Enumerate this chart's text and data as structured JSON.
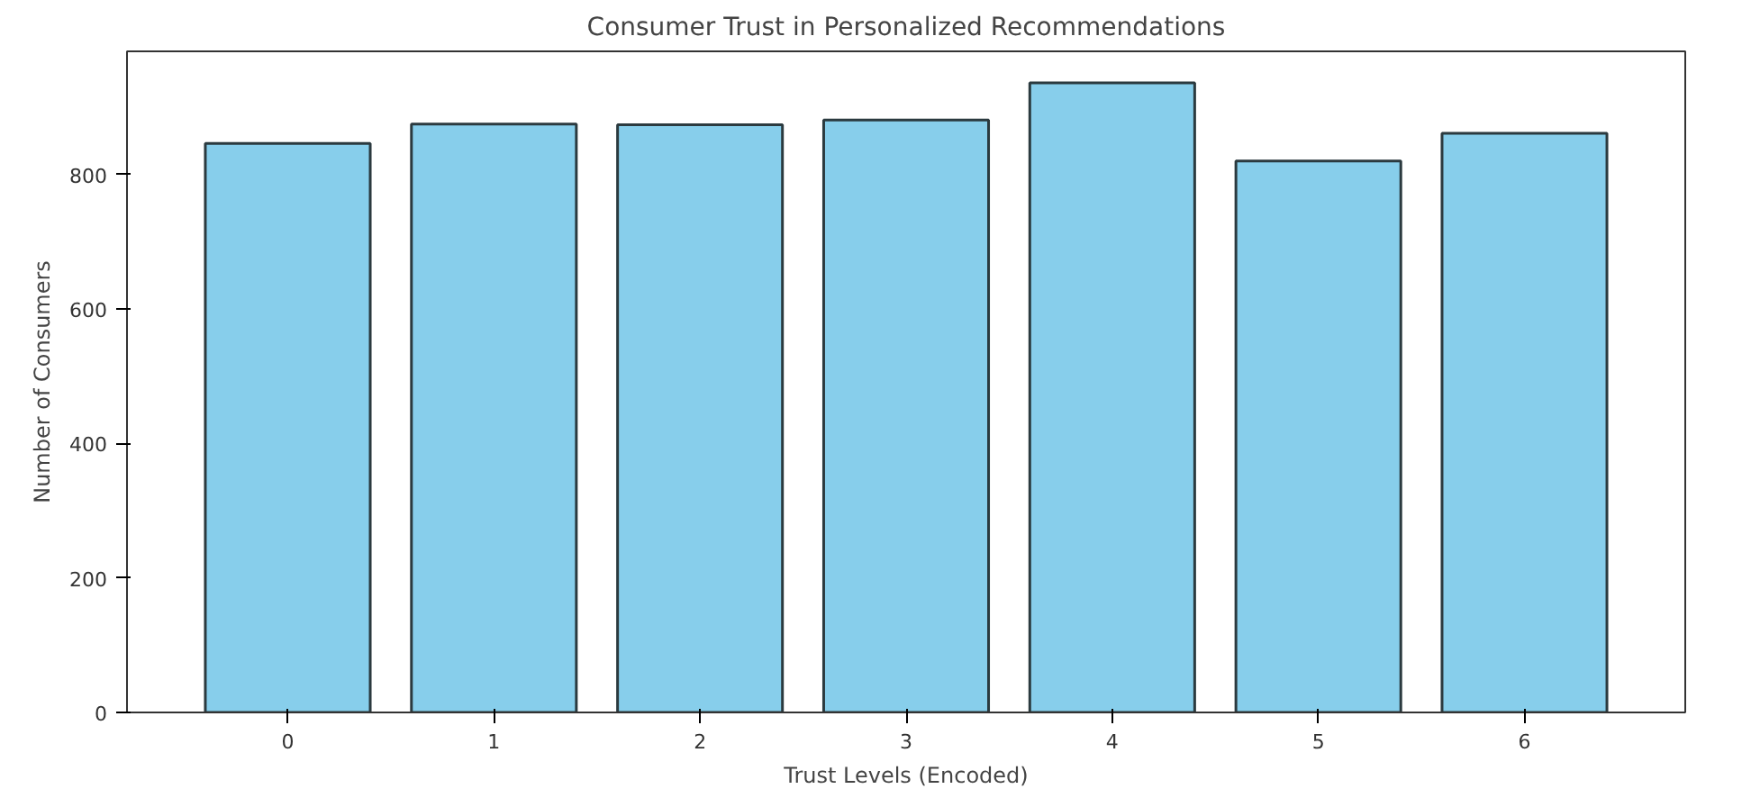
{
  "chart_data": {
    "type": "bar",
    "title": "Consumer Trust in Personalized Recommendations",
    "xlabel": "Trust Levels (Encoded)",
    "ylabel": "Number of Consumers",
    "categories": [
      "0",
      "1",
      "2",
      "3",
      "4",
      "5",
      "6"
    ],
    "values": [
      846,
      875,
      874,
      881,
      936,
      820,
      861
    ],
    "color": "#87ceeb",
    "ylim": [
      0,
      983
    ],
    "yticks": [
      0,
      200,
      400,
      600,
      800
    ],
    "grid": false
  }
}
